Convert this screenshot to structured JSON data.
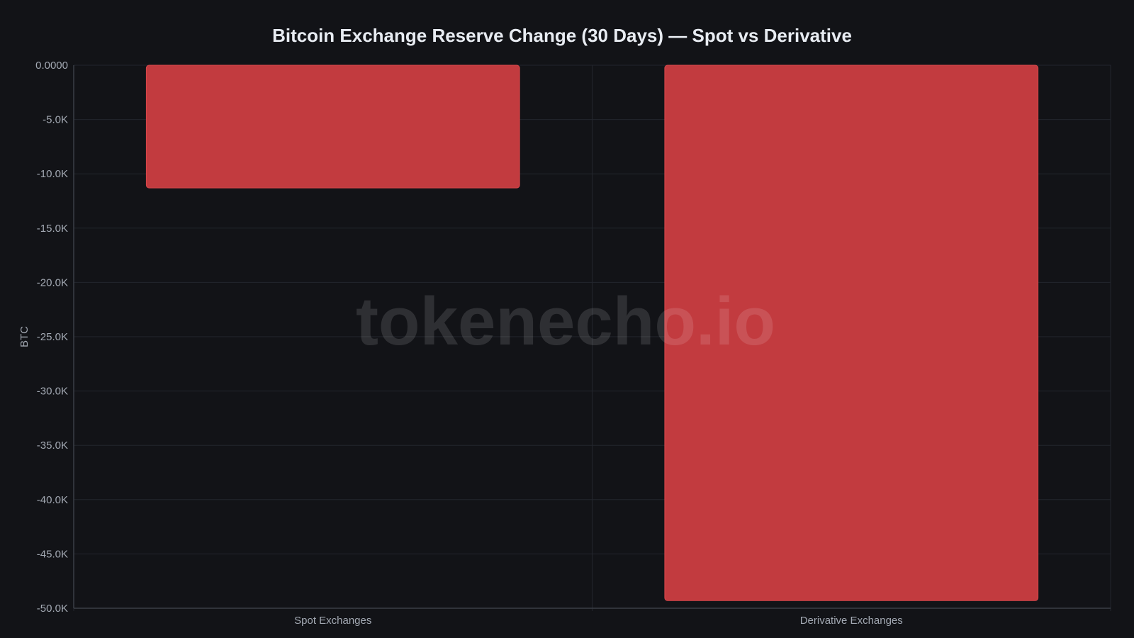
{
  "watermark": "tokenecho.io",
  "chart_data": {
    "type": "bar",
    "title": "Bitcoin Exchange Reserve Change (30 Days) — Spot vs Derivative",
    "xlabel": "",
    "ylabel": "BTC",
    "categories": [
      "Spot Exchanges",
      "Derivative Exchanges"
    ],
    "values": [
      -11300,
      -49300
    ],
    "ylim": [
      -50000,
      0
    ],
    "yticks": [
      0,
      -5000,
      -10000,
      -15000,
      -20000,
      -25000,
      -30000,
      -35000,
      -40000,
      -45000,
      -50000
    ],
    "ytick_labels": [
      "0.0000",
      "-5.0K",
      "-10.0K",
      "-15.0K",
      "-20.0K",
      "-25.0K",
      "-30.0K",
      "-35.0K",
      "-40.0K",
      "-45.0K",
      "-50.0K"
    ],
    "grid": true,
    "legend": "none",
    "colors": {
      "background": "#121317",
      "bar": "#c23b3f",
      "bar_edge": "#d9484c",
      "grid": "#23262d",
      "axis": "#3a3e47",
      "title": "#e8ecf2",
      "tick": "#a3a9b3"
    }
  }
}
